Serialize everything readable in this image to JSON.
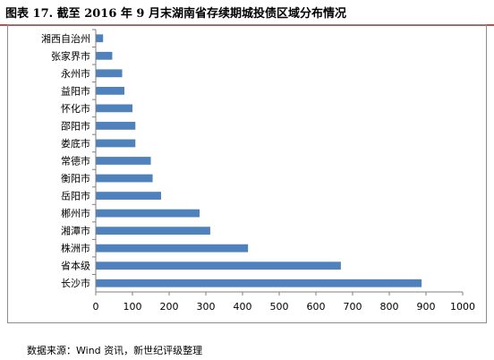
{
  "figure": {
    "title": "图表 17. 截至 2016 年 9 月末湖南省存续期城投债区域分布情况",
    "source": "数据来源：Wind 资讯，新世纪评级整理"
  },
  "colors": {
    "bar": "#4f81bd",
    "axis": "#7f7f7f",
    "accent_rule": "#c0504d"
  },
  "chart_data": {
    "type": "bar",
    "orientation": "horizontal",
    "categories": [
      "湘西自治州",
      "张家界市",
      "永州市",
      "益阳市",
      "怀化市",
      "邵阳市",
      "娄底市",
      "常德市",
      "衡阳市",
      "岳阳市",
      "郴州市",
      "湘潭市",
      "株洲市",
      "省本级",
      "长沙市"
    ],
    "values": [
      20,
      45,
      72,
      78,
      100,
      108,
      108,
      150,
      155,
      178,
      283,
      312,
      415,
      668,
      888
    ],
    "xlim": [
      0,
      1000
    ],
    "xticks": [
      0,
      100,
      200,
      300,
      400,
      500,
      600,
      700,
      800,
      900,
      1000
    ],
    "grid": false,
    "legend": "none"
  }
}
